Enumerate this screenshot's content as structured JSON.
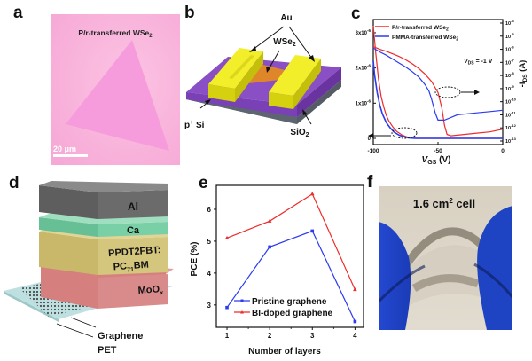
{
  "panels": {
    "a": {
      "label": "a",
      "title": "P/r-transferred WSe",
      "title_sub": "2",
      "scale_bar": "20 μm",
      "colors": {
        "background": "#fbbde0",
        "flake": "#f79ddb",
        "text": "#222222"
      }
    },
    "b": {
      "label": "b",
      "labels": {
        "au": "Au",
        "wse2": "WSe",
        "wse2_sub": "2",
        "si": "p",
        "si_sup": "+",
        "si_tail": " Si",
        "sio2": "SiO",
        "sio2_sub": "2"
      },
      "colors": {
        "gold": "#e5e012",
        "gold_top": "#f2ee2a",
        "sio2": "#8a4fc4",
        "si": "#5d6570",
        "wse2": "#e0862a"
      }
    },
    "d": {
      "label": "d",
      "layers": [
        {
          "name": "Al",
          "color": "#6b6b6b"
        },
        {
          "name": "Ca",
          "color": "#79cfa6"
        },
        {
          "name": "PPDT2FBT:",
          "name2": "PC",
          "name2_sub": "71",
          "name2_tail": "BM",
          "color": "#d4c67c"
        },
        {
          "name": "MoO",
          "name_sub": "x",
          "color": "#d67f7f"
        }
      ],
      "graphene_label": "Graphene",
      "pet_label": "PET",
      "colors": {
        "pet": "#bfe0e0"
      }
    },
    "f": {
      "label": "f",
      "caption": "1.6 cm",
      "caption_sup": "2",
      "caption_tail": " cell",
      "colors": {
        "background": "#d9d3c6",
        "glove": "#1e44c4"
      }
    }
  },
  "chart_data": [
    {
      "panel": "c",
      "label": "c",
      "type": "line",
      "xlabel": "V",
      "xlabel_sub": "GS",
      "xlabel_tail": " (V)",
      "ylabel_left": "-I",
      "ylabel_left_sub": "DS",
      "ylabel_left_tail": " (A)",
      "ylabel_right": "-I",
      "ylabel_right_sub": "DS",
      "ylabel_right_tail": " (A)",
      "xlim": [
        -100,
        0
      ],
      "xticks": [
        "-100",
        "-50",
        "0"
      ],
      "xtick_values": [
        -100,
        -50,
        0
      ],
      "ylim_left": [
        0,
        3.2e-06
      ],
      "yticks_left": [
        "0",
        "1x10",
        "2x10",
        "3x10"
      ],
      "yticks_left_exp": [
        "",
        "-6",
        "-6",
        "-6"
      ],
      "ytick_left_values": [
        0,
        1e-06,
        2e-06,
        3e-06
      ],
      "ylim_right_log": [
        -13,
        -4
      ],
      "yticks_right_exp": [
        "-4",
        "-5",
        "-6",
        "-7",
        "-8",
        "-9",
        "-10",
        "-11",
        "-12",
        "-13"
      ],
      "annotation": "V",
      "annotation_sub": "DS",
      "annotation_tail": " = -1 V",
      "legend": [
        {
          "name": "P/r-transferred WSe",
          "sub": "2",
          "color": "#ee2b2b"
        },
        {
          "name": "PMMA-transferred WSe",
          "sub": "2",
          "color": "#2b3bee"
        }
      ],
      "legend_position": "top-left",
      "series": [
        {
          "name": "P/r-transferred WSe2 (linear)",
          "axis": "left",
          "color": "#ee2b2b",
          "x": [
            -100,
            -98,
            -96,
            -94,
            -92,
            -90,
            -88,
            -85,
            -82,
            -78,
            -74,
            -70,
            -66,
            -60,
            -50,
            -40,
            -20,
            0
          ],
          "y": [
            3.2e-06,
            2.4e-06,
            1.7e-06,
            1.2e-06,
            9e-07,
            6.6e-07,
            5e-07,
            3.3e-07,
            2e-07,
            1e-07,
            4e-08,
            1e-08,
            0.0,
            0.0,
            0.0,
            0.0,
            0.0,
            0.0
          ]
        },
        {
          "name": "PMMA-transferred WSe2 (linear)",
          "axis": "left",
          "color": "#2b3bee",
          "x": [
            -100,
            -99,
            -97,
            -95,
            -93,
            -90,
            -87,
            -84,
            -80,
            -76,
            -72,
            -68,
            -64,
            -60,
            -40,
            -20,
            0
          ],
          "y": [
            2.2e-06,
            1.8e-06,
            1.3e-06,
            9.5e-07,
            7e-07,
            4.5e-07,
            3e-07,
            1.8e-07,
            9e-08,
            4e-08,
            1e-08,
            0.0,
            0.0,
            0.0,
            0.0,
            0.0,
            0.0
          ]
        },
        {
          "name": "P/r-transferred WSe2 (log)",
          "axis": "right",
          "color": "#ee2b2b",
          "x": [
            -100,
            -95,
            -90,
            -85,
            -80,
            -75,
            -70,
            -65,
            -60,
            -55,
            -50,
            -47,
            -45,
            -43,
            -40,
            -35,
            -30,
            -20,
            -10,
            0
          ],
          "y": [
            -5.8,
            -6.0,
            -6.15,
            -6.35,
            -6.55,
            -6.8,
            -7.1,
            -7.45,
            -7.9,
            -8.45,
            -9.3,
            -10.5,
            -11.8,
            -12.5,
            -12.6,
            -12.55,
            -12.5,
            -12.4,
            -12.3,
            -12.1
          ]
        },
        {
          "name": "PMMA-transferred WSe2 (log)",
          "axis": "right",
          "color": "#2b3bee",
          "x": [
            -100,
            -95,
            -90,
            -85,
            -80,
            -75,
            -70,
            -65,
            -60,
            -57,
            -55,
            -52,
            -50,
            -45,
            -40,
            -35,
            -30,
            -20,
            -10,
            0
          ],
          "y": [
            -5.9,
            -6.2,
            -6.45,
            -6.75,
            -7.05,
            -7.35,
            -7.7,
            -8.1,
            -8.7,
            -9.2,
            -9.8,
            -10.9,
            -11.4,
            -11.4,
            -11.2,
            -11.0,
            -10.95,
            -10.85,
            -10.75,
            -10.65
          ]
        }
      ]
    },
    {
      "panel": "e",
      "label": "e",
      "type": "line",
      "xlabel": "Number of layers",
      "ylabel": "PCE (%)",
      "categories": [
        "1",
        "2",
        "3",
        "4"
      ],
      "x": [
        1,
        2,
        3,
        4
      ],
      "xlim": [
        0.75,
        4.2
      ],
      "ylim": [
        2.3,
        6.75
      ],
      "yticks": [
        "3",
        "4",
        "5",
        "6"
      ],
      "ytick_values": [
        3,
        4,
        5,
        6
      ],
      "legend_position": "bottom-left",
      "series": [
        {
          "name": "Pristine graphene",
          "color": "#2b3bee",
          "marker": "square",
          "values": [
            2.92,
            4.82,
            5.32,
            2.48
          ]
        },
        {
          "name": "BI-doped graphene",
          "color": "#ee2b2b",
          "marker": "triangle",
          "values": [
            5.1,
            5.63,
            6.48,
            3.48
          ]
        }
      ]
    }
  ]
}
